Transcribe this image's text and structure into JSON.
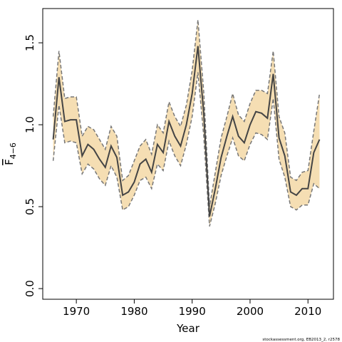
{
  "chart_data": {
    "type": "line",
    "x_label": "Year",
    "y_label": {
      "main": "F",
      "subscript": "4−6"
    },
    "footer": "stockassessment.org, EB2013_2, r2578",
    "x": [
      1966,
      1967,
      1968,
      1969,
      1970,
      1971,
      1972,
      1973,
      1974,
      1975,
      1976,
      1977,
      1978,
      1979,
      1980,
      1981,
      1982,
      1983,
      1984,
      1985,
      1986,
      1987,
      1988,
      1989,
      1990,
      1991,
      1992,
      1993,
      1994,
      1995,
      1996,
      1997,
      1998,
      1999,
      2000,
      2001,
      2002,
      2003,
      2004,
      2005,
      2006,
      2007,
      2008,
      2009,
      2010,
      2011,
      2012
    ],
    "values": [
      0.91,
      1.29,
      1.02,
      1.03,
      1.03,
      0.81,
      0.88,
      0.85,
      0.79,
      0.74,
      0.87,
      0.8,
      0.57,
      0.59,
      0.65,
      0.76,
      0.79,
      0.71,
      0.88,
      0.83,
      1.02,
      0.93,
      0.87,
      1.0,
      1.19,
      1.48,
      1.07,
      0.44,
      0.61,
      0.8,
      0.93,
      1.05,
      0.93,
      0.89,
      1.0,
      1.08,
      1.07,
      1.04,
      1.31,
      0.92,
      0.81,
      0.59,
      0.57,
      0.61,
      0.61,
      0.83,
      0.91
    ],
    "upper": [
      1.05,
      1.45,
      1.16,
      1.17,
      1.17,
      0.93,
      0.99,
      0.97,
      0.91,
      0.85,
      0.99,
      0.93,
      0.66,
      0.69,
      0.78,
      0.87,
      0.91,
      0.82,
      1.0,
      0.95,
      1.14,
      1.05,
      0.99,
      1.12,
      1.33,
      1.64,
      1.2,
      0.5,
      0.71,
      0.92,
      1.05,
      1.19,
      1.06,
      1.02,
      1.13,
      1.21,
      1.21,
      1.19,
      1.45,
      1.05,
      0.95,
      0.68,
      0.66,
      0.71,
      0.72,
      0.96,
      1.19
    ],
    "lower": [
      0.78,
      1.12,
      0.89,
      0.9,
      0.89,
      0.7,
      0.76,
      0.73,
      0.67,
      0.63,
      0.75,
      0.68,
      0.48,
      0.5,
      0.57,
      0.66,
      0.68,
      0.61,
      0.76,
      0.72,
      0.9,
      0.81,
      0.75,
      0.88,
      1.05,
      1.32,
      0.93,
      0.38,
      0.52,
      0.69,
      0.81,
      0.92,
      0.81,
      0.78,
      0.88,
      0.95,
      0.94,
      0.91,
      1.16,
      0.79,
      0.68,
      0.5,
      0.48,
      0.51,
      0.51,
      0.64,
      0.61
    ],
    "line_color": "#444444",
    "band_color": "#f5deb3",
    "band_line_color": "#777777",
    "xlim": [
      1964.2,
      2014.4
    ],
    "xticks": [
      1970,
      1980,
      1990,
      2000,
      2010
    ],
    "ylim": [
      -0.065,
      1.709
    ],
    "yticks": [
      {
        "value": 0,
        "label": "0.0"
      },
      0.5,
      {
        "value": 1,
        "label": "1.0"
      },
      1.5
    ],
    "grid": false
  }
}
